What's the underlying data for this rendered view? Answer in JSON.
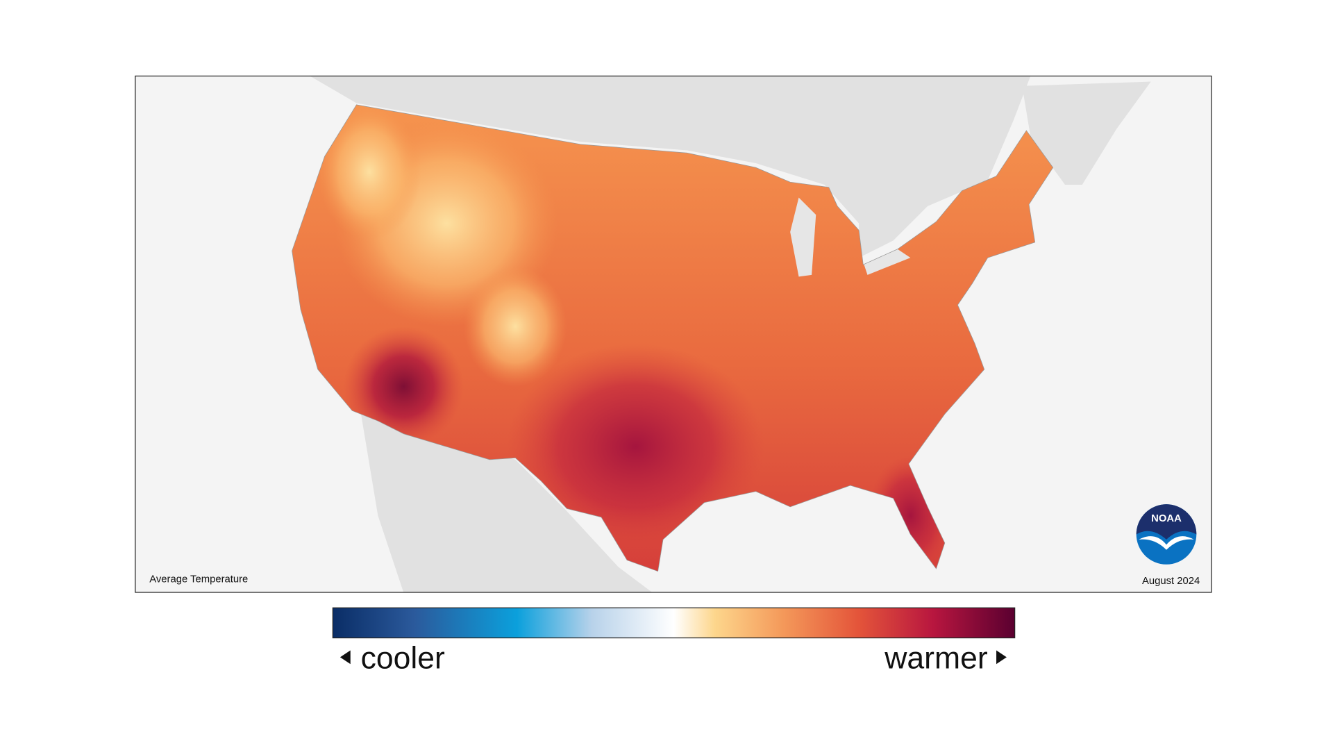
{
  "map": {
    "title": "Average Temperature",
    "date": "August 2024"
  },
  "legend": {
    "low_label": "cooler",
    "high_label": "warmer"
  },
  "logo": {
    "text": "NOAA"
  }
}
